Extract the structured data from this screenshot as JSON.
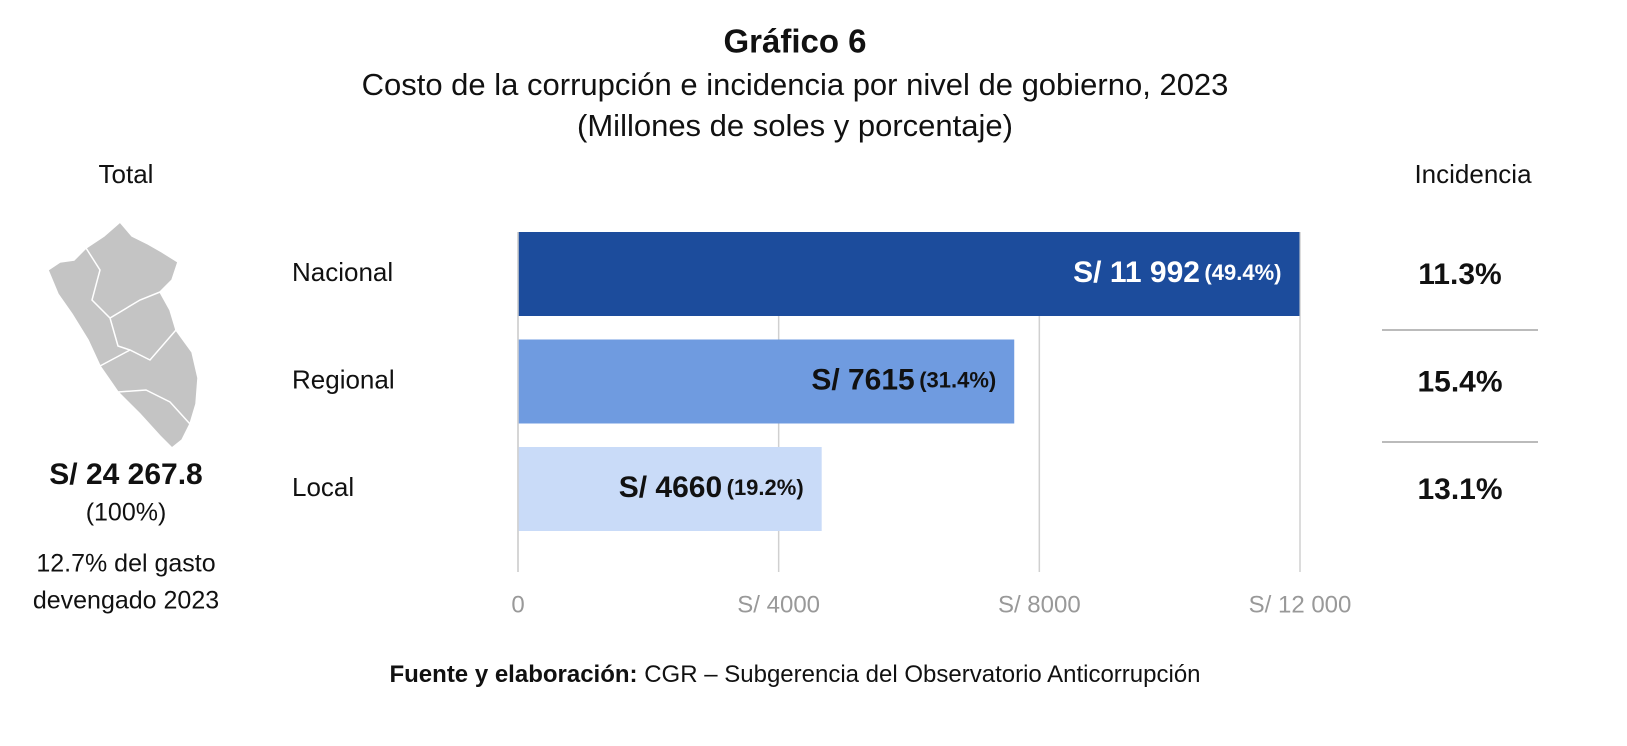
{
  "chart_data": {
    "type": "bar",
    "orientation": "horizontal",
    "title": "Gráfico 6",
    "subtitle": "Costo de la corrupción e incidencia por nivel de gobierno, 2023",
    "units_note": "(Millones de soles y porcentaje)",
    "categories": [
      "Nacional",
      "Regional",
      "Local"
    ],
    "values": [
      11992,
      7615,
      4660
    ],
    "value_labels": [
      "S/ 11 992",
      "S/ 7615",
      "S/ 4660"
    ],
    "share_labels": [
      "(49.4%)",
      "(31.4%)",
      "(19.2%)"
    ],
    "colors": [
      "#1c4c9c",
      "#6f9be0",
      "#c9dbf8"
    ],
    "xlim": [
      0,
      12000
    ],
    "xticks": [
      0,
      {
        "value": 4000,
        "label": "S/ 4000"
      },
      {
        "value": 8000,
        "label": "S/ 8000"
      },
      {
        "value": 12000,
        "label": "S/ 12 000"
      }
    ],
    "grid": true,
    "incidence": {
      "title": "Incidencia",
      "labels": [
        "11.3%",
        "15.4%",
        "13.1%"
      ]
    },
    "total": {
      "title": "Total",
      "amount": "S/ 24 267.8",
      "share": "(100%)",
      "note": [
        "12.7% del gasto",
        "devengado 2023"
      ]
    },
    "source": {
      "label": "Fuente y elaboración:",
      "text": "CGR – Subgerencia del Observatorio Anticorrupción"
    }
  }
}
